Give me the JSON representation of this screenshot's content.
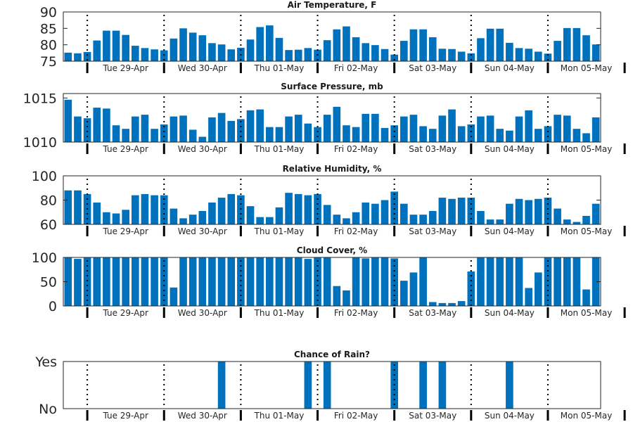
{
  "chart_data": [
    {
      "type": "bar",
      "title": "Air Temperature, F",
      "ylim": [
        75,
        90
      ],
      "yticks": [
        75,
        80,
        85,
        90
      ],
      "ytick_labels": [
        "75",
        "80",
        "85",
        "90"
      ],
      "values": [
        77.6,
        77.4,
        77.8,
        81.3,
        84.3,
        84.3,
        83.0,
        79.7,
        79.0,
        78.6,
        78.3,
        81.9,
        85.0,
        83.7,
        82.9,
        80.5,
        80.1,
        78.6,
        79.1,
        81.6,
        85.4,
        85.9,
        82.1,
        78.4,
        78.5,
        79.0,
        78.5,
        81.4,
        84.7,
        85.6,
        82.3,
        80.5,
        79.9,
        78.7,
        77.0,
        81.2,
        84.7,
        84.7,
        82.3,
        78.8,
        78.7,
        77.9,
        77.4,
        82.0,
        84.9,
        84.9,
        80.6,
        79.0,
        78.8,
        77.9,
        77.3,
        81.2,
        85.1,
        85.1,
        82.9,
        80.1
      ],
      "color": "#0072bd",
      "grid": false
    },
    {
      "type": "bar",
      "title": "Surface Pressure, mb",
      "ylim": [
        1010,
        1015.5
      ],
      "yticks": [
        1010,
        1015
      ],
      "ytick_labels": [
        "1010",
        "1015"
      ],
      "values": [
        1014.8,
        1012.9,
        1012.7,
        1013.9,
        1013.8,
        1011.9,
        1011.5,
        1012.9,
        1013.1,
        1011.5,
        1012.0,
        1012.9,
        1013.0,
        1011.4,
        1010.6,
        1012.8,
        1013.3,
        1012.4,
        1012.6,
        1013.6,
        1013.7,
        1011.7,
        1011.7,
        1012.9,
        1013.1,
        1012.1,
        1011.7,
        1013.1,
        1014.0,
        1011.9,
        1011.7,
        1013.2,
        1013.2,
        1011.6,
        1011.9,
        1012.9,
        1013.1,
        1011.8,
        1011.5,
        1013.0,
        1013.7,
        1011.8,
        1012.0,
        1012.9,
        1013.0,
        1011.5,
        1011.3,
        1012.9,
        1013.6,
        1011.5,
        1011.8,
        1013.1,
        1013.0,
        1011.5,
        1011.0,
        1012.8
      ],
      "color": "#0072bd",
      "grid": false
    },
    {
      "type": "bar",
      "title": "Relative Humidity, %",
      "ylim": [
        60,
        100
      ],
      "yticks": [
        60,
        80,
        100
      ],
      "ytick_labels": [
        "60",
        "80",
        "100"
      ],
      "values": [
        88,
        88,
        85,
        78,
        70,
        69,
        72,
        84,
        85,
        84,
        84,
        73,
        65,
        68,
        71,
        78,
        82,
        85,
        84,
        75,
        66,
        66,
        74,
        86,
        85,
        84,
        85,
        76,
        68,
        65,
        70,
        78,
        77,
        80,
        87,
        77,
        68,
        68,
        71,
        82,
        81,
        82,
        82,
        71,
        64,
        64,
        77,
        81,
        80,
        81,
        82,
        73,
        64,
        62,
        67,
        77
      ],
      "color": "#0072bd",
      "grid": false
    },
    {
      "type": "bar",
      "title": "Cloud Cover, %",
      "ylim": [
        0,
        100
      ],
      "yticks": [
        0,
        50,
        100
      ],
      "ytick_labels": [
        "0",
        "50",
        "100"
      ],
      "values": [
        100,
        97,
        100,
        100,
        100,
        100,
        100,
        100,
        100,
        100,
        100,
        38,
        100,
        100,
        100,
        100,
        100,
        100,
        100,
        100,
        100,
        100,
        100,
        100,
        100,
        97,
        100,
        100,
        41,
        32,
        100,
        98,
        100,
        100,
        98,
        52,
        69,
        100,
        8,
        6,
        6,
        10,
        71,
        100,
        100,
        100,
        100,
        100,
        37,
        69,
        100,
        100,
        100,
        100,
        34,
        100
      ],
      "color": "#0072bd",
      "grid": false
    },
    {
      "type": "bar",
      "title": "Chance of Rain?",
      "ylim": [
        0,
        1
      ],
      "yticks": [
        0,
        1
      ],
      "ytick_labels": [
        "No",
        "Yes"
      ],
      "values": [
        0,
        0,
        0,
        0,
        0,
        0,
        0,
        0,
        0,
        0,
        0,
        0,
        0,
        0,
        0,
        0,
        1,
        0,
        0,
        0,
        0,
        0,
        0,
        0,
        0,
        1,
        0,
        1,
        0,
        0,
        0,
        0,
        0,
        0,
        1,
        0,
        0,
        1,
        0,
        1,
        0,
        0,
        0,
        0,
        0,
        0,
        1,
        0,
        0,
        0,
        0,
        0,
        0,
        0,
        0,
        0
      ],
      "color": "#0072bd",
      "grid": false
    }
  ],
  "day_labels": [
    "Tue 29-Apr",
    "Wed 30-Apr",
    "Thu 01-May",
    "Fri 02-May",
    "Sat 03-May",
    "Sun 04-May",
    "Mon 05-May"
  ]
}
